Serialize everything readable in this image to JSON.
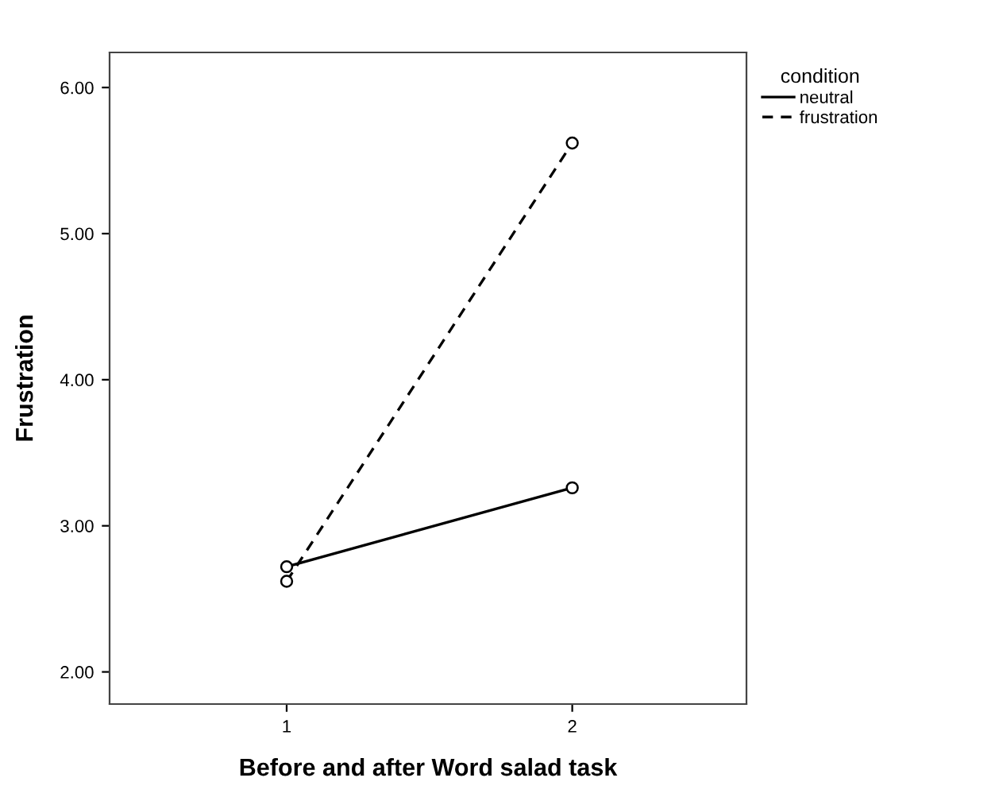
{
  "chart_data": {
    "type": "line",
    "xlabel": "Before and after Word salad task",
    "ylabel": "Frustration",
    "legend_title": "condition",
    "x": [
      1,
      2
    ],
    "series": [
      {
        "name": "neutral",
        "color": "#000000",
        "values": [
          2.72,
          3.26
        ],
        "line_style": "solid"
      },
      {
        "name": "frustration",
        "color": "#000000",
        "values": [
          2.62,
          5.62
        ],
        "line_style": "dashed"
      }
    ],
    "xlim": [
      0.38,
      2.61
    ],
    "ylim": [
      1.78,
      6.24
    ],
    "xticks": [
      1,
      2
    ],
    "yticks": [
      {
        "value": 2,
        "label": "2.00"
      },
      {
        "value": 3,
        "label": "3.00"
      },
      {
        "value": 4,
        "label": "4.00"
      },
      {
        "value": 5,
        "label": "5.00"
      },
      {
        "value": 6,
        "label": "6.00"
      }
    ],
    "marker": "circle",
    "grid": false,
    "legend": "top right"
  }
}
